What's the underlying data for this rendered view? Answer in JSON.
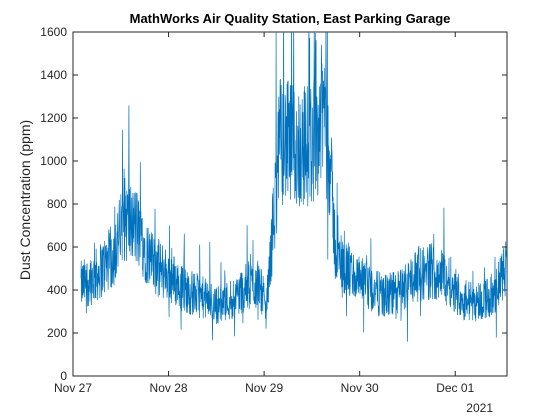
{
  "chart_data": {
    "type": "line",
    "title": "MathWorks Air Quality Station, East Parking Garage",
    "xlabel": "",
    "ylabel": "Dust Concentration (ppm)",
    "x_secondary_label": "2021",
    "ylim": [
      0,
      1600
    ],
    "y_ticks": [
      0,
      200,
      400,
      600,
      800,
      1000,
      1200,
      1400,
      1600
    ],
    "x_ticks": [
      "Nov 27",
      "Nov 28",
      "Nov 29",
      "Nov 30",
      "Dec 01"
    ],
    "xlim": [
      "2021-11-27 00:00",
      "2021-12-01 13:00"
    ],
    "grid": false,
    "line_color": "#0072BD",
    "series": [
      {
        "x": [
          "2021-11-27 02:00",
          "2021-11-27 06:00",
          "2021-11-27 10:00",
          "2021-11-27 13:00",
          "2021-11-27 16:00",
          "2021-11-27 20:00",
          "2021-11-28 00:00",
          "2021-11-28 04:00",
          "2021-11-28 08:00",
          "2021-11-28 12:00",
          "2021-11-28 16:00",
          "2021-11-28 20:00",
          "2021-11-28 23:00",
          "2021-11-29 00:30",
          "2021-11-29 04:00",
          "2021-11-29 08:00",
          "2021-11-29 12:00",
          "2021-11-29 14:00",
          "2021-11-29 15:30",
          "2021-11-29 18:00",
          "2021-11-29 22:00",
          "2021-11-30 02:00",
          "2021-11-30 06:00",
          "2021-11-30 10:00",
          "2021-11-30 14:00",
          "2021-11-30 18:00",
          "2021-11-30 22:00",
          "2021-12-01 02:00",
          "2021-12-01 06:00",
          "2021-12-01 10:00",
          "2021-12-01 13:00"
        ],
        "y": [
          420,
          470,
          560,
          730,
          690,
          520,
          470,
          400,
          370,
          330,
          360,
          420,
          430,
          300,
          1100,
          1060,
          1080,
          1180,
          1290,
          560,
          470,
          410,
          370,
          390,
          470,
          490,
          460,
          350,
          350,
          380,
          520
        ]
      }
    ]
  }
}
